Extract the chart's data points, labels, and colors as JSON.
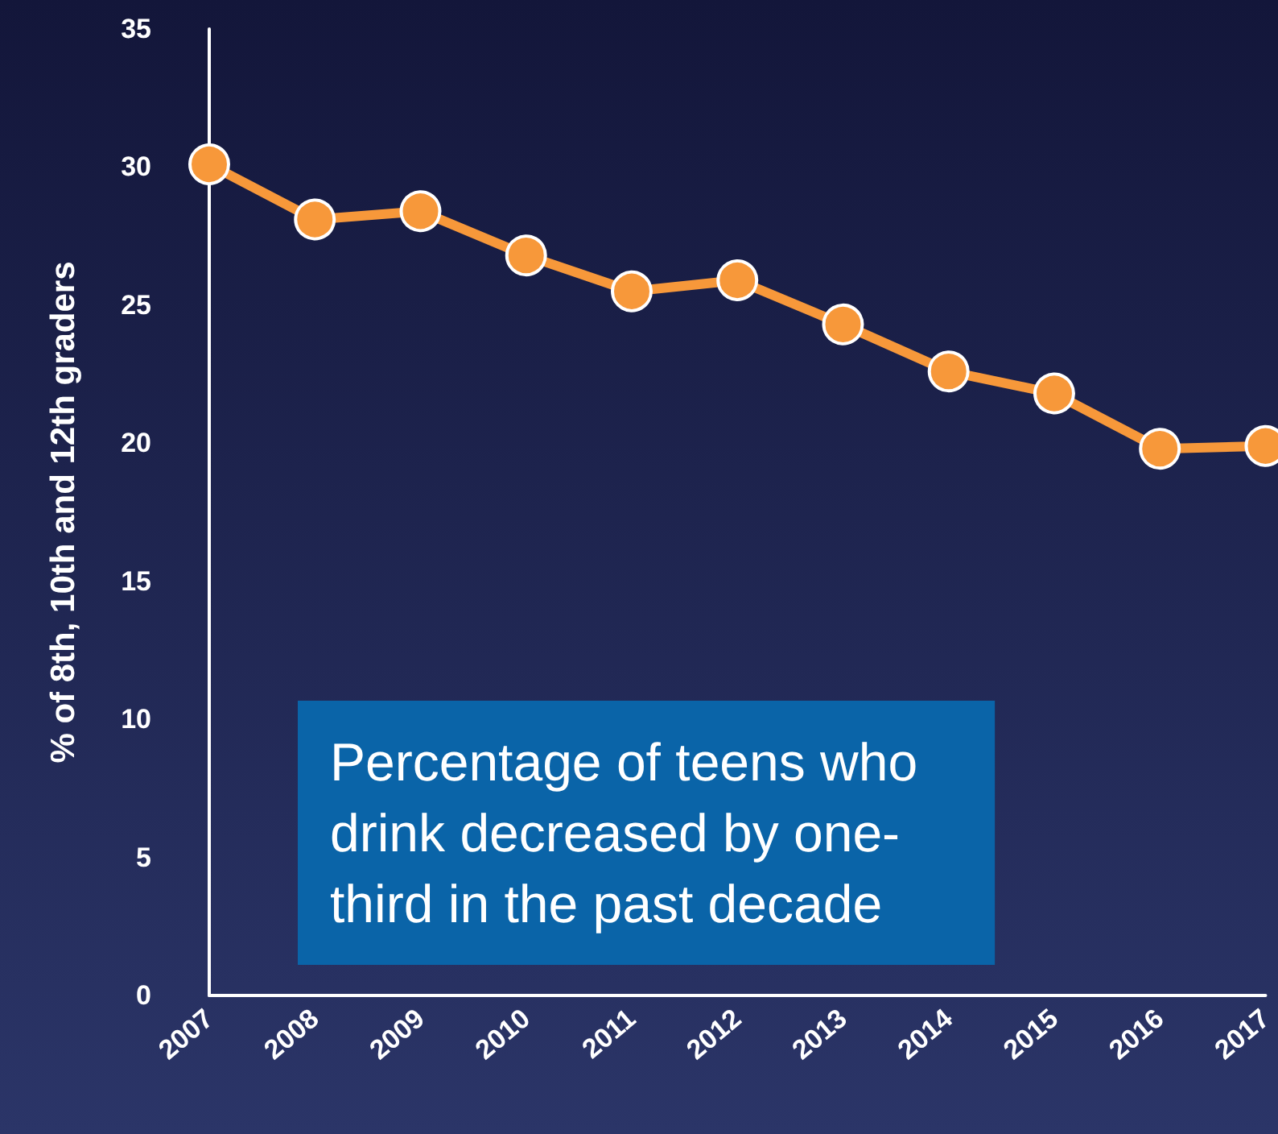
{
  "chart_data": {
    "type": "line",
    "ylabel": "% of 8th, 10th and 12th graders",
    "categories": [
      "2007",
      "2008",
      "2009",
      "2010",
      "2011",
      "2012",
      "2013",
      "2014",
      "2015",
      "2016",
      "2017"
    ],
    "series": [
      {
        "color": "#f7983a",
        "values": [
          30.1,
          28.1,
          28.4,
          26.8,
          25.5,
          25.9,
          24.3,
          22.6,
          21.8,
          19.8,
          19.9
        ]
      }
    ],
    "ylim": [
      0,
      35
    ],
    "yticks": [
      0,
      5,
      10,
      15,
      20,
      25,
      30,
      35
    ],
    "grid": false,
    "marker": "circle",
    "line_style": "solid",
    "annotations": [
      "Percentage of teens who drink decreased by one-third in the past decade"
    ]
  }
}
